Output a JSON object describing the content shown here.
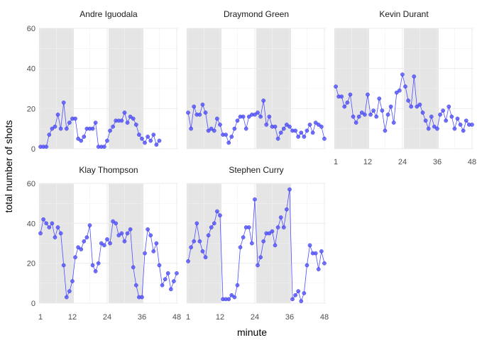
{
  "chart_data": {
    "type": "line",
    "facet_by": "player",
    "xlabel": "minute",
    "ylabel": "total number of shots",
    "x_ticks": [
      1,
      12,
      24,
      36,
      48
    ],
    "y_ticks": [
      0,
      20,
      40,
      60
    ],
    "xlim": [
      0.5,
      48.5
    ],
    "ylim": [
      0,
      60
    ],
    "grid": true,
    "shaded_ranges": [
      [
        0.5,
        12.5
      ],
      [
        24.5,
        36.5
      ]
    ],
    "colors": {
      "line": "#4d4dff",
      "point": "#5a5aff",
      "shade": "#e5e5e5",
      "grid": "#ebebeb"
    },
    "panels": [
      {
        "title": "Andre Iguodala",
        "y": [
          1,
          1,
          1,
          7,
          10,
          11,
          17,
          10,
          23,
          10,
          13,
          15,
          15,
          5,
          4,
          6,
          10,
          10,
          10,
          13,
          1,
          1,
          1,
          4,
          9,
          11,
          14,
          14,
          14,
          18,
          13,
          16,
          15,
          12,
          7,
          5,
          3,
          6,
          4,
          7,
          2,
          4
        ]
      },
      {
        "title": "Draymond Green",
        "y": [
          18,
          10,
          21,
          17,
          17,
          22,
          18,
          9,
          10,
          9,
          15,
          12,
          7,
          7,
          3,
          6,
          10,
          14,
          16,
          16,
          10,
          16,
          17,
          17,
          18,
          16,
          24,
          12,
          16,
          11,
          11,
          5,
          8,
          10,
          12,
          11,
          9,
          9,
          6,
          8,
          6,
          9,
          12,
          8,
          13,
          12,
          11,
          5
        ]
      },
      {
        "title": "Kevin Durant",
        "y": [
          31,
          26,
          26,
          21,
          23,
          27,
          16,
          13,
          16,
          18,
          17,
          27,
          17,
          19,
          16,
          25,
          19,
          9,
          17,
          21,
          13,
          28,
          29,
          37,
          31,
          24,
          21,
          36,
          21,
          22,
          18,
          14,
          10,
          16,
          11,
          10,
          17,
          19,
          14,
          21,
          16,
          10,
          15,
          12,
          9,
          14,
          12,
          12
        ]
      },
      {
        "title": "Klay Thompson",
        "y": [
          35,
          42,
          40,
          38,
          40,
          33,
          38,
          35,
          19,
          3,
          6,
          11,
          23,
          28,
          27,
          31,
          33,
          39,
          19,
          16,
          20,
          30,
          29,
          32,
          30,
          41,
          40,
          34,
          35,
          31,
          35,
          37,
          18,
          9,
          3,
          3,
          25,
          37,
          34,
          26,
          30,
          19,
          9,
          12,
          15,
          7,
          11,
          15
        ]
      },
      {
        "title": "Stephen Curry",
        "y": [
          21,
          28,
          31,
          40,
          31,
          26,
          23,
          34,
          38,
          40,
          46,
          44,
          2,
          2,
          2,
          4,
          3,
          9,
          28,
          33,
          38,
          38,
          30,
          52,
          19,
          23,
          31,
          35,
          35,
          36,
          29,
          38,
          43,
          38,
          47,
          57,
          2,
          4,
          6,
          1,
          5,
          19,
          29,
          25,
          25,
          17,
          26,
          20
        ]
      }
    ]
  }
}
